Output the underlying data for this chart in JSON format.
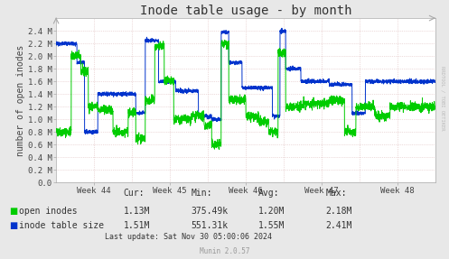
{
  "title": "Inode table usage - by month",
  "ylabel": "number of open inodes",
  "bg_color": "#e8e8e8",
  "plot_bg_color": "#ffffff",
  "grid_color": "#ddbbbb",
  "green_color": "#00cc00",
  "blue_color": "#0033cc",
  "x_tick_positions": [
    0.1,
    0.3,
    0.5,
    0.7,
    0.9
  ],
  "x_tick_labels": [
    "Week 44",
    "Week 45",
    "Week 46",
    "Week 47",
    "Week 48"
  ],
  "y_ticks": [
    0.0,
    200000,
    400000,
    600000,
    800000,
    1000000,
    1200000,
    1400000,
    1600000,
    1800000,
    2000000,
    2200000,
    2400000
  ],
  "y_tick_labels": [
    "0.0",
    "0.2 M",
    "0.4 M",
    "0.6 M",
    "0.8 M",
    "1.0 M",
    "1.2 M",
    "1.4 M",
    "1.6 M",
    "1.8 M",
    "2.0 M",
    "2.2 M",
    "2.4 M"
  ],
  "ylim_max": 2600000,
  "stats_header": [
    "Cur:",
    "Min:",
    "Avg:",
    "Max:"
  ],
  "stats_open": [
    "1.13M",
    "375.49k",
    "1.20M",
    "2.18M"
  ],
  "stats_table": [
    "1.51M",
    "551.31k",
    "1.55M",
    "2.41M"
  ],
  "legend_labels": [
    "open inodes",
    "inode table size"
  ],
  "last_update": "Last update: Sat Nov 30 05:00:06 2024",
  "munin_version": "Munin 2.0.57",
  "rrdtool_label": "RRDTOOL / TOBI OETIKER",
  "title_fontsize": 10,
  "axis_label_fontsize": 7,
  "tick_fontsize": 6.5,
  "legend_fontsize": 7,
  "stats_fontsize": 7
}
